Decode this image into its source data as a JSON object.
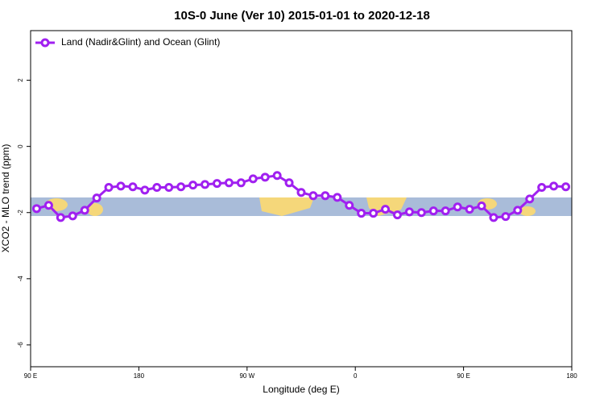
{
  "chart_data": {
    "type": "line",
    "title": "10S-0 June (Ver 10)   2015-01-01 to 2020-12-18",
    "x_label": "Longitude (deg E)",
    "y_label": "XCO2 - MLO trend (ppm)",
    "x": [
      95,
      105,
      115,
      125,
      135,
      145,
      155,
      165,
      175,
      185,
      195,
      205,
      215,
      225,
      235,
      245,
      255,
      265,
      275,
      285,
      295,
      305,
      315,
      325,
      335,
      345,
      355,
      365,
      375,
      385,
      395,
      405,
      415,
      425,
      435,
      445,
      455,
      465,
      475,
      485,
      495,
      505,
      515,
      525,
      535
    ],
    "series": [
      {
        "name": "Land (Nadir&Glint) and Ocean (Glint)",
        "color": "#a020f0",
        "values": [
          -1.88,
          -1.78,
          -2.15,
          -2.1,
          -1.93,
          -1.56,
          -1.24,
          -1.2,
          -1.22,
          -1.32,
          -1.24,
          -1.24,
          -1.22,
          -1.17,
          -1.15,
          -1.12,
          -1.1,
          -1.1,
          -0.98,
          -0.93,
          -0.88,
          -1.1,
          -1.39,
          -1.49,
          -1.49,
          -1.54,
          -1.78,
          -2.02,
          -2.02,
          -1.9,
          -2.07,
          -1.98,
          -2.0,
          -1.95,
          -1.95,
          -1.83,
          -1.9,
          -1.8,
          -2.15,
          -2.12,
          -1.93,
          -1.59,
          -1.24,
          -1.2,
          -1.22
        ]
      }
    ],
    "xlim": [
      90,
      540
    ],
    "xticks": [
      {
        "value": 90,
        "label": "90 E"
      },
      180,
      {
        "value": 270,
        "label": "90 W"
      },
      {
        "value": 360,
        "label": "0"
      },
      {
        "value": 450,
        "label": "90 E"
      },
      {
        "value": 540,
        "label": "180"
      }
    ],
    "ylim": [
      -6.66,
      3.5
    ],
    "yticks": [
      2,
      0,
      -2,
      -4,
      -6
    ],
    "legend": "top-left"
  }
}
